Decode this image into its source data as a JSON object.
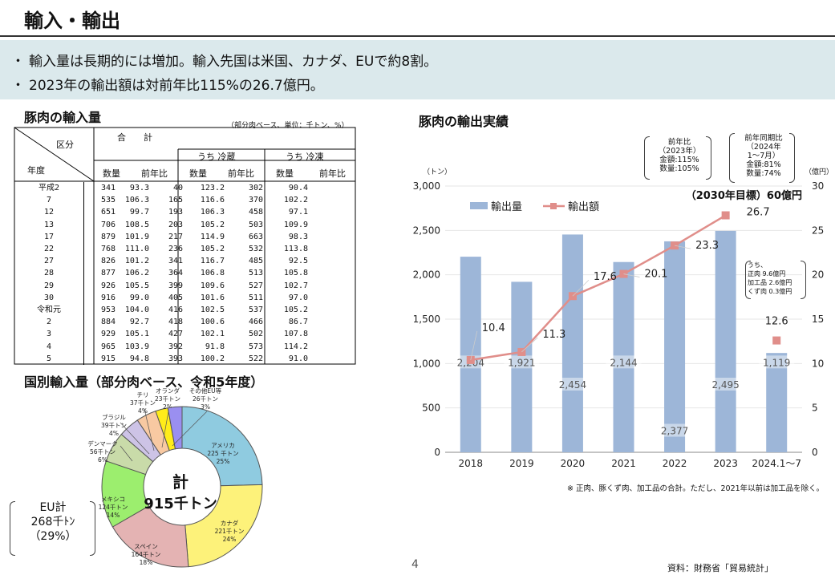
{
  "header": {
    "title": "輸入・輸出"
  },
  "bullets": [
    "輸入量は長期的には増加。輸入先国は米国、カナダ、EUで約8割。",
    "2023年の輸出額は対前年比115%の26.7億円。"
  ],
  "bullet_mark": "・",
  "import_table": {
    "section_title": "豚肉の輸入量",
    "unit_note": "（部分肉ベース、単位：千トン、%）",
    "header_kubun": "区分",
    "header_nendo": "年度",
    "header_total": "合　　計",
    "header_reizo": "うち 冷蔵",
    "header_reito": "うち 冷凍",
    "col_qty": "数量",
    "col_yoy": "前年比",
    "rows": [
      [
        "平成2",
        "341",
        "93.3",
        "40",
        "123.2",
        "302",
        "90.4"
      ],
      [
        "7",
        "535",
        "106.3",
        "165",
        "116.6",
        "370",
        "102.2"
      ],
      [
        "12",
        "651",
        "99.7",
        "193",
        "106.3",
        "458",
        "97.1"
      ],
      [
        "13",
        "706",
        "108.5",
        "203",
        "105.2",
        "503",
        "109.9"
      ],
      [
        "17",
        "879",
        "101.9",
        "217",
        "114.9",
        "663",
        "98.3"
      ],
      [
        "22",
        "768",
        "111.0",
        "236",
        "105.2",
        "532",
        "113.8"
      ],
      [
        "27",
        "826",
        "101.2",
        "341",
        "116.7",
        "485",
        "92.5"
      ],
      [
        "28",
        "877",
        "106.2",
        "364",
        "106.8",
        "513",
        "105.8"
      ],
      [
        "29",
        "926",
        "105.5",
        "399",
        "109.6",
        "527",
        "102.7"
      ],
      [
        "30",
        "916",
        "99.0",
        "405",
        "101.6",
        "511",
        "97.0"
      ],
      [
        "令和元",
        "953",
        "104.0",
        "416",
        "102.5",
        "537",
        "105.2"
      ],
      [
        "2",
        "884",
        "92.7",
        "418",
        "100.6",
        "466",
        "86.7"
      ],
      [
        "3",
        "929",
        "105.1",
        "427",
        "102.1",
        "502",
        "107.8"
      ],
      [
        "4",
        "965",
        "103.9",
        "392",
        "91.8",
        "573",
        "114.2"
      ],
      [
        "5",
        "915",
        "94.8",
        "393",
        "100.2",
        "522",
        "91.0"
      ]
    ]
  },
  "pie": {
    "section_title": "国別輸入量（部分肉ベース、令和5年度）",
    "center_label": "計",
    "center_value": "915千トン",
    "eu_label": "EU計",
    "eu_value": "268千ﾄﾝ",
    "eu_share": "（29%）",
    "slices": [
      {
        "name": "アメリカ",
        "qty": "225 千トン",
        "pct": "25%",
        "value": 225,
        "color": "#8fcbe0"
      },
      {
        "name": "カナダ",
        "qty": "221千トン",
        "pct": "24%",
        "value": 221,
        "color": "#fdf27a"
      },
      {
        "name": "スペイン",
        "qty": "164千トン",
        "pct": "18%",
        "value": 164,
        "color": "#e4b3b3"
      },
      {
        "name": "メキシコ",
        "qty": "124千トン",
        "pct": "14%",
        "value": 124,
        "color": "#9cee6e"
      },
      {
        "name": "デンマーク",
        "qty": "56千トン",
        "pct": "6%",
        "value": 56,
        "color": "#c9dba9"
      },
      {
        "name": "ブラジル",
        "qty": "39千トン",
        "pct": "4%",
        "value": 39,
        "color": "#cdc3e6"
      },
      {
        "name": "チリ",
        "qty": "37千トン",
        "pct": "4%",
        "value": 37,
        "color": "#f8c9a2"
      },
      {
        "name": "オランダ",
        "qty": "23千トン",
        "pct": "2%",
        "value": 23,
        "color": "#ffec1a"
      },
      {
        "name": "その他EU等",
        "qty": "26千トン",
        "pct": "3%",
        "value": 26,
        "color": "#9a8ff0"
      }
    ]
  },
  "chart_data": {
    "type": "bar",
    "title": "豚肉の輸出実績",
    "categories": [
      "2018",
      "2019",
      "2020",
      "2021",
      "2022",
      "2023",
      "2024.1～7"
    ],
    "series": [
      {
        "name": "輸出量",
        "axis": "left",
        "values": [
          2204,
          1921,
          2454,
          2144,
          2377,
          2495,
          1119
        ],
        "labels": [
          "2,204",
          "1,921",
          "2,454",
          "2,144",
          "2,377",
          "2,495",
          "1,119"
        ],
        "color": "#9db6d8"
      },
      {
        "name": "輸出額",
        "axis": "right",
        "values": [
          10.4,
          11.3,
          17.6,
          20.1,
          23.3,
          26.7,
          12.6
        ],
        "labels": [
          "10.4",
          "11.3",
          "17.6",
          "20.1",
          "23.3",
          "26.7",
          "12.6"
        ],
        "color": "#e08e8a"
      }
    ],
    "ylabel_left": "（トン）",
    "ylabel_right": "（億円）",
    "ylim_left": [
      0,
      3000
    ],
    "ylim_right": [
      0,
      30
    ],
    "yticks_left": [
      "0",
      "500",
      "1,000",
      "1,500",
      "2,000",
      "2,500",
      "3,000"
    ],
    "yticks_right": [
      "0",
      "5",
      "10",
      "15",
      "20",
      "25",
      "30"
    ],
    "target_label": "（2030年目標）60億円",
    "yoy_note": [
      "前年比",
      "（2023年）",
      "金額:115%",
      "数量:105%"
    ],
    "ytd_note": [
      "前年同期比",
      "（2024年",
      "1～7月）",
      "金額:81%",
      "数量:74%"
    ],
    "breakdown_note": [
      "うち、",
      "正肉 9.6億円",
      "加工品 2.6億円",
      "くず肉 0.3億円"
    ],
    "footnote": "※ 正肉、豚くず肉、加工品の合計。ただし、2021年以前は加工品を除く。",
    "source": "資料：財務省「貿易統計」"
  },
  "page_number": "4"
}
